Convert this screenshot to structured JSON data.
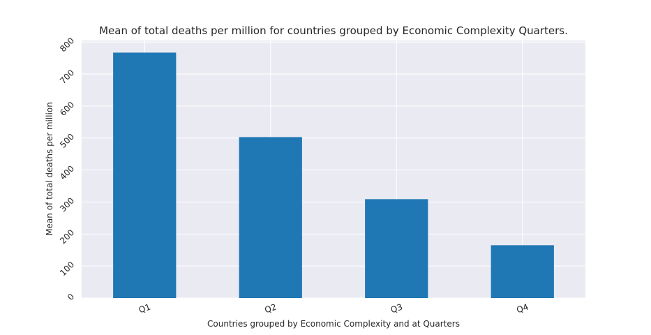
{
  "chart_data": {
    "type": "bar",
    "title": "Mean of total deaths per million for countries grouped by Economic Complexity Quarters.",
    "xlabel": "Countries grouped by Economic Complexity and at Quarters",
    "ylabel": "Mean of total deaths per million",
    "categories": [
      "Q1",
      "Q2",
      "Q3",
      "Q4"
    ],
    "values": [
      767,
      503,
      309,
      165
    ],
    "ylim": [
      0,
      805
    ],
    "yticks": [
      0,
      100,
      200,
      300,
      400,
      500,
      600,
      700,
      800
    ],
    "grid": true,
    "legend": "none"
  },
  "colors": {
    "bar": "#1f77b4",
    "plot_background": "#eaeaf2",
    "grid": "#ffffff",
    "text": "#262626"
  }
}
